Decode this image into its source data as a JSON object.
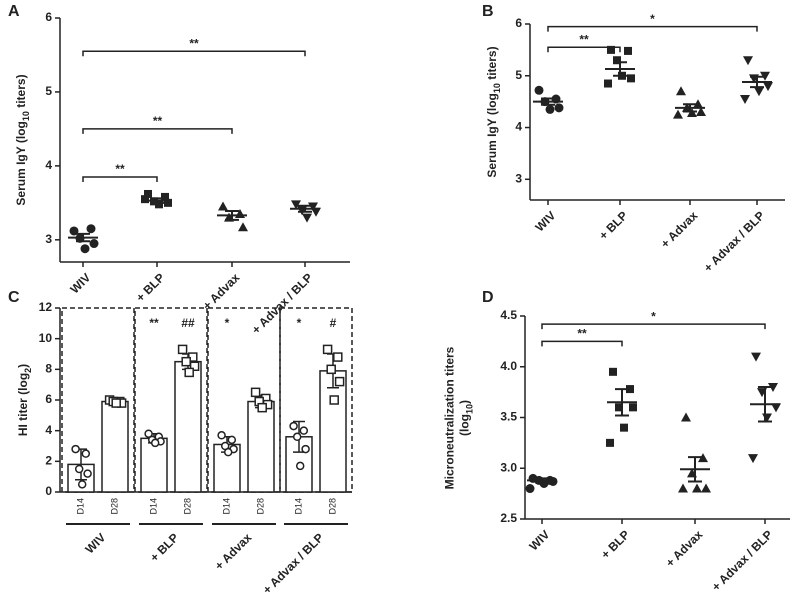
{
  "chart_data": [
    {
      "type": "dot",
      "letter": "A",
      "ylabel": [
        [
          "Serum IgY (log",
          "10",
          " titers)"
        ]
      ],
      "categories": [
        "WIV",
        "+ BLP",
        "+ Advax",
        "+ Advax / BLP"
      ],
      "markers": [
        "circle",
        "square",
        "triangle",
        "triangle-down"
      ],
      "color": "#222",
      "points": [
        [
          3.12,
          3.15,
          3.02,
          2.95,
          2.88
        ],
        [
          3.62,
          3.58,
          3.52,
          3.5,
          3.48,
          3.55
        ],
        [
          3.45,
          3.35,
          3.3,
          3.17
        ],
        [
          3.48,
          3.45,
          3.4,
          3.38,
          3.3
        ]
      ],
      "means": [
        3.03,
        3.53,
        3.33,
        3.42
      ],
      "errors": [
        0.05,
        0.03,
        0.06,
        0.04
      ],
      "brackets": [
        {
          "from": 0,
          "to": 1,
          "y": 3.85,
          "label": "**"
        },
        {
          "from": 0,
          "to": 2,
          "y": 4.5,
          "label": "**"
        },
        {
          "from": 0,
          "to": 3,
          "y": 5.55,
          "label": "**"
        }
      ],
      "ylim": [
        2.7,
        6
      ],
      "yticks": [
        3,
        4,
        5,
        6
      ]
    },
    {
      "type": "dot",
      "letter": "B",
      "ylabel": [
        [
          "Serum IgY (log",
          "10",
          " titers)"
        ]
      ],
      "categories": [
        "WIV",
        "+ BLP",
        "+ Advax",
        "+ Advax / BLP"
      ],
      "markers": [
        "circle",
        "square",
        "triangle",
        "triangle-down"
      ],
      "color": "#222",
      "points": [
        [
          4.72,
          4.55,
          4.5,
          4.38,
          4.35
        ],
        [
          5.5,
          5.48,
          5.3,
          4.95,
          5.0,
          4.85
        ],
        [
          4.7,
          4.45,
          4.38,
          4.3,
          4.28,
          4.25
        ],
        [
          5.3,
          5.0,
          4.95,
          4.8,
          4.7,
          4.55
        ]
      ],
      "means": [
        4.5,
        5.13,
        4.38,
        4.88
      ],
      "errors": [
        0.06,
        0.13,
        0.07,
        0.1
      ],
      "brackets": [
        {
          "from": 0,
          "to": 1,
          "y": 5.55,
          "label": "**"
        },
        {
          "from": 0,
          "to": 3,
          "y": 5.95,
          "label": "*"
        }
      ],
      "ylim": [
        2.6,
        6
      ],
      "yticks": [
        3,
        4,
        5,
        6
      ]
    },
    {
      "type": "bar",
      "letter": "C",
      "ylabel": [
        [
          "HI titer (log",
          "2",
          ")"
        ]
      ],
      "categories": [
        "WIV",
        "+ BLP",
        "+ Advax",
        "+ Advax / BLP"
      ],
      "series": [
        {
          "name": "D14",
          "marker": "circle",
          "values": [
            1.8,
            3.5,
            3.1,
            3.6
          ],
          "errors": [
            1.0,
            0.3,
            0.5,
            1.0
          ],
          "points": [
            [
              2.8,
              2.5,
              1.5,
              1.2,
              0.5
            ],
            [
              3.8,
              3.6,
              3.4,
              3.3,
              3.2
            ],
            [
              3.7,
              3.4,
              3.0,
              2.8,
              2.6
            ],
            [
              4.3,
              4.0,
              3.6,
              2.8,
              1.7
            ]
          ]
        },
        {
          "name": "D28",
          "marker": "square",
          "values": [
            5.9,
            8.5,
            5.9,
            7.9
          ],
          "errors": [
            0.2,
            0.5,
            0.4,
            1.1
          ],
          "points": [
            [
              6.0,
              5.9,
              5.9,
              5.8,
              5.8
            ],
            [
              9.3,
              8.8,
              8.5,
              8.2,
              7.8
            ],
            [
              6.5,
              6.1,
              5.9,
              5.7,
              5.5
            ],
            [
              9.3,
              8.8,
              8.0,
              7.2,
              6.0
            ]
          ]
        }
      ],
      "color": "#222",
      "annotations": [
        {
          "category": 1,
          "series": 0,
          "label": "**"
        },
        {
          "category": 1,
          "series": 1,
          "label": "##"
        },
        {
          "category": 2,
          "series": 0,
          "label": "*"
        },
        {
          "category": 3,
          "series": 0,
          "label": "*"
        },
        {
          "category": 3,
          "series": 1,
          "label": "#"
        }
      ],
      "ylim": [
        0,
        12
      ],
      "yticks": [
        0,
        2,
        4,
        6,
        8,
        10,
        12
      ]
    },
    {
      "type": "dot",
      "letter": "D",
      "ylabel": [
        [
          "Microneutralization titers"
        ],
        [
          "(log",
          "10",
          ")"
        ]
      ],
      "categories": [
        "WIV",
        "+ BLP",
        "+ Advax",
        "+ Advax / BLP"
      ],
      "markers": [
        "circle",
        "square",
        "triangle",
        "triangle-down"
      ],
      "color": "#222",
      "points": [
        [
          2.9,
          2.88,
          2.88,
          2.87,
          2.85,
          2.8
        ],
        [
          3.95,
          3.78,
          3.6,
          3.6,
          3.4,
          3.25
        ],
        [
          3.5,
          3.1,
          2.95,
          2.8,
          2.8,
          2.8
        ],
        [
          4.1,
          3.8,
          3.75,
          3.6,
          3.5,
          3.1
        ]
      ],
      "means": [
        2.88,
        3.65,
        2.99,
        3.63
      ],
      "errors": [
        0.02,
        0.13,
        0.12,
        0.17
      ],
      "brackets": [
        {
          "from": 0,
          "to": 1,
          "y": 4.25,
          "label": "**"
        },
        {
          "from": 0,
          "to": 3,
          "y": 4.42,
          "label": "*"
        }
      ],
      "ylim": [
        2.5,
        4.5
      ],
      "yticks": [
        {
          "value": 2.5,
          "label": "2.5"
        },
        {
          "value": 3.0,
          "label": "3.0"
        },
        {
          "value": 3.5,
          "label": "3.5"
        },
        {
          "value": 4.0,
          "label": "4.0"
        },
        {
          "value": 4.5,
          "label": "4.5"
        }
      ]
    }
  ]
}
